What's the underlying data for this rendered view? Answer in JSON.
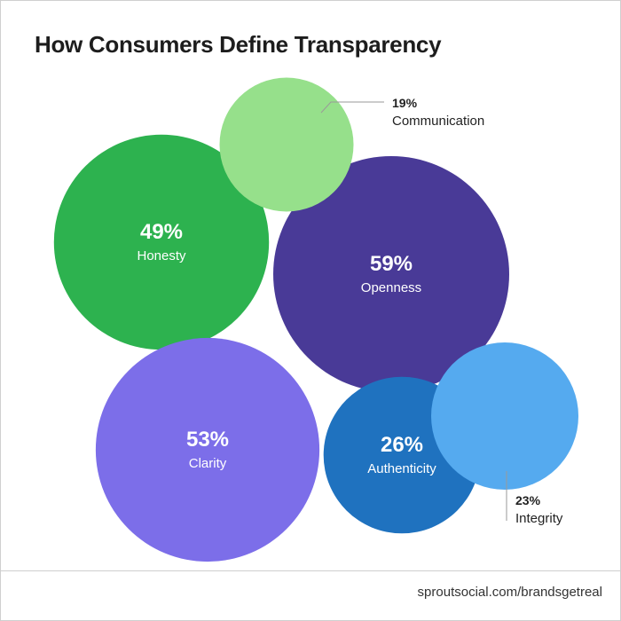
{
  "page": {
    "source": "sproutsocial.com/brandsgetreal"
  },
  "colors": {
    "text_dark": "#222222",
    "text_light": "#ffffff",
    "leader": "#9a9a9a"
  },
  "chart_data": {
    "type": "bubble",
    "title": "How Consumers Define Transparency",
    "unit": "%",
    "items": [
      {
        "id": "honesty",
        "label": "Honesty",
        "value": 49,
        "display": "49%",
        "color": "#2db24f",
        "label_inside": true
      },
      {
        "id": "openness",
        "label": "Openness",
        "value": 59,
        "display": "59%",
        "color": "#493a97",
        "label_inside": true
      },
      {
        "id": "clarity",
        "label": "Clarity",
        "value": 53,
        "display": "53%",
        "color": "#7c6ee9",
        "label_inside": true
      },
      {
        "id": "authenticity",
        "label": "Authenticity",
        "value": 26,
        "display": "26%",
        "color": "#1f72bf",
        "label_inside": true
      },
      {
        "id": "communication",
        "label": "Communication",
        "value": 19,
        "display": "19%",
        "color": "#96e08b",
        "label_inside": false
      },
      {
        "id": "integrity",
        "label": "Integrity",
        "value": 23,
        "display": "23%",
        "color": "#55aaef",
        "label_inside": false
      }
    ]
  }
}
